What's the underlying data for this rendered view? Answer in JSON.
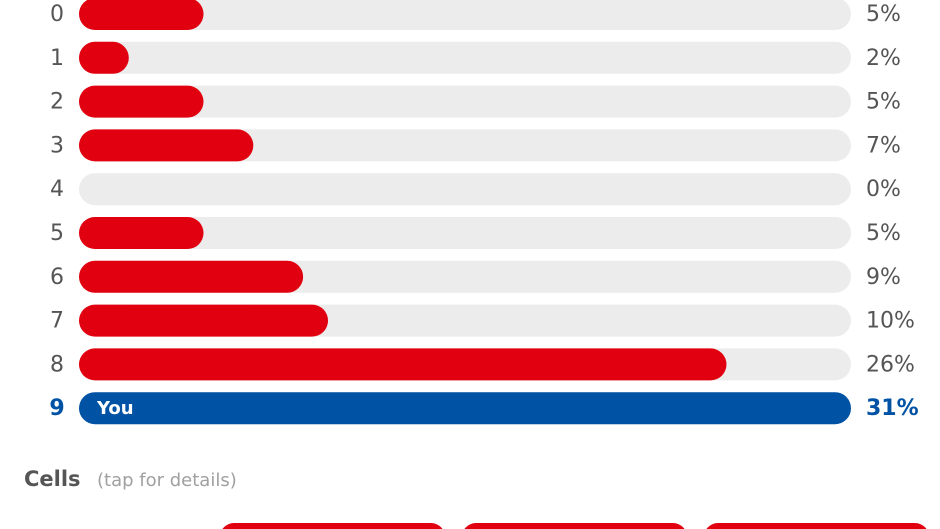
{
  "chart_data": {
    "type": "hbar",
    "categories": [
      "0",
      "1",
      "2",
      "3",
      "4",
      "5",
      "6",
      "7",
      "8",
      "9"
    ],
    "values": [
      5,
      2,
      5,
      7,
      0,
      5,
      9,
      10,
      26,
      31
    ],
    "value_labels": [
      "5%",
      "2%",
      "5%",
      "7%",
      "0%",
      "5%",
      "9%",
      "10%",
      "26%",
      "31%"
    ],
    "xlim": [
      0,
      31
    ],
    "color": "#e1000f",
    "track_color": "#ececec",
    "label_color": "#555555",
    "highlight": {
      "index": 9,
      "label": "You",
      "color": "#0052a5"
    }
  },
  "footer": {
    "title": "Cells",
    "hint": "(tap for details)"
  }
}
